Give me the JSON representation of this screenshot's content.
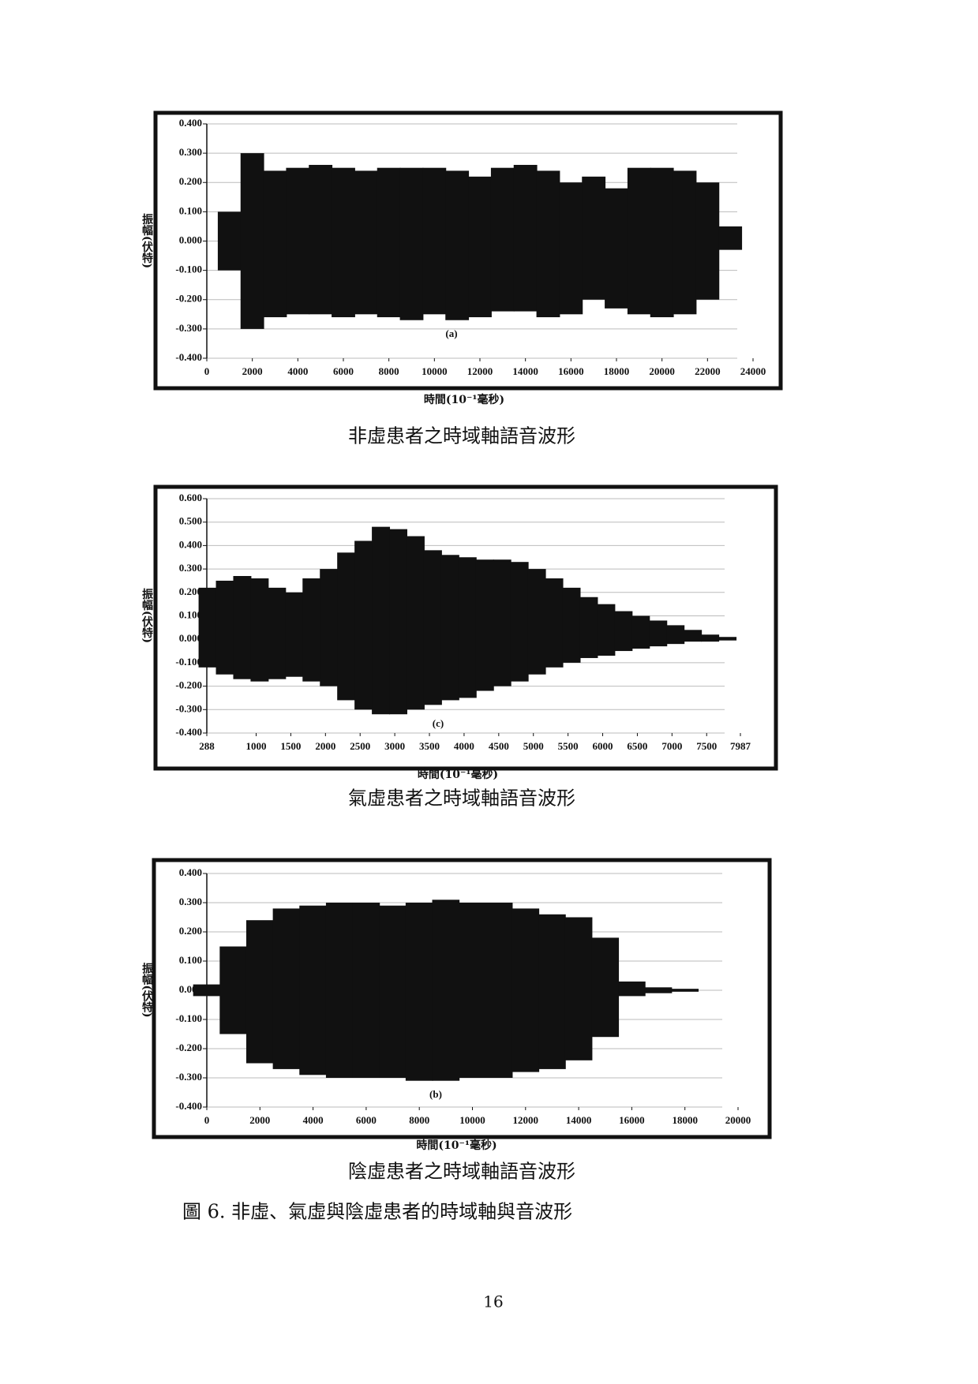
{
  "chart_data": [
    {
      "type": "waveform",
      "annotation": "(a)",
      "ylabel": "振幅(伏特)",
      "xlabel": "時間(10⁻¹毫秒)",
      "caption": "非虛患者之時域軸語音波形",
      "x": [
        0,
        1000,
        2000,
        3000,
        4000,
        5000,
        6000,
        7000,
        8000,
        9000,
        10000,
        11000,
        12000,
        13000,
        14000,
        15000,
        16000,
        17000,
        18000,
        19000,
        20000,
        21000,
        22000,
        23000,
        24000
      ],
      "series": [
        {
          "color": "#111111",
          "values": [
            null,
            0.1,
            0.3,
            0.24,
            0.25,
            0.26,
            0.25,
            0.24,
            0.25,
            0.25,
            0.25,
            0.24,
            0.22,
            0.25,
            0.26,
            0.24,
            0.2,
            0.22,
            0.18,
            0.25,
            0.25,
            0.24,
            0.2,
            0.05,
            null
          ]
        },
        {
          "color": "#111111",
          "values": [
            null,
            -0.1,
            -0.3,
            -0.26,
            -0.25,
            -0.25,
            -0.26,
            -0.25,
            -0.26,
            -0.27,
            -0.25,
            -0.27,
            -0.26,
            -0.24,
            -0.24,
            -0.26,
            -0.25,
            -0.2,
            -0.23,
            -0.25,
            -0.26,
            -0.25,
            -0.2,
            -0.03,
            null
          ]
        }
      ],
      "xlim": [
        0,
        24000
      ],
      "ylim": [
        -0.4,
        0.4
      ],
      "xticks": [
        0,
        2000,
        4000,
        6000,
        8000,
        10000,
        12000,
        14000,
        16000,
        18000,
        20000,
        22000,
        24000
      ],
      "yticks": [
        {
          "value": 0.4,
          "label": "0.400"
        },
        {
          "value": 0.3,
          "label": "0.300"
        },
        {
          "value": 0.2,
          "label": "0.200"
        },
        {
          "value": 0.1,
          "label": "0.100"
        },
        {
          "value": 0,
          "label": "0.000"
        },
        {
          "value": -0.1,
          "label": "-0.100"
        },
        {
          "value": -0.2,
          "label": "-0.200"
        },
        {
          "value": -0.3,
          "label": "-0.300"
        },
        {
          "value": -0.4,
          "label": "-0.400"
        }
      ],
      "grid": true
    },
    {
      "type": "waveform",
      "annotation": "(c)",
      "ylabel": "振幅(伏特)",
      "xlabel": "時間(10⁻¹毫秒)",
      "caption": "氣虛患者之時域軸語音波形",
      "x": [
        300,
        550,
        800,
        1050,
        1300,
        1550,
        1800,
        2050,
        2300,
        2550,
        2800,
        3050,
        3300,
        3550,
        3800,
        4050,
        4300,
        4550,
        4800,
        5050,
        5300,
        5550,
        5800,
        6050,
        6300,
        6550,
        6800,
        7050,
        7300,
        7550,
        7800
      ],
      "series": [
        {
          "color": "#111111",
          "values": [
            0.22,
            0.25,
            0.27,
            0.26,
            0.22,
            0.2,
            0.26,
            0.3,
            0.37,
            0.42,
            0.48,
            0.47,
            0.44,
            0.38,
            0.36,
            0.35,
            0.34,
            0.34,
            0.33,
            0.3,
            0.26,
            0.22,
            0.18,
            0.15,
            0.12,
            0.1,
            0.08,
            0.06,
            0.04,
            0.02,
            0.01
          ]
        },
        {
          "color": "#111111",
          "values": [
            -0.12,
            -0.15,
            -0.17,
            -0.18,
            -0.17,
            -0.16,
            -0.18,
            -0.2,
            -0.26,
            -0.3,
            -0.32,
            -0.32,
            -0.3,
            -0.28,
            -0.26,
            -0.25,
            -0.22,
            -0.2,
            -0.18,
            -0.15,
            -0.12,
            -0.1,
            -0.08,
            -0.07,
            -0.05,
            -0.04,
            -0.03,
            -0.02,
            -0.01,
            -0.01,
            -0.005
          ]
        }
      ],
      "xlim": [
        288,
        7987
      ],
      "ylim": [
        -0.4,
        0.6
      ],
      "xticks": [
        288,
        1000,
        1500,
        2000,
        2500,
        3000,
        3500,
        4000,
        4500,
        5000,
        5500,
        6000,
        6500,
        7000,
        7500,
        7987
      ],
      "yticks": [
        {
          "value": 0.6,
          "label": "0.600"
        },
        {
          "value": 0.5,
          "label": "0.500"
        },
        {
          "value": 0.4,
          "label": "0.400"
        },
        {
          "value": 0.3,
          "label": "0.300"
        },
        {
          "value": 0.2,
          "label": "0.200"
        },
        {
          "value": 0.1,
          "label": "0.100"
        },
        {
          "value": 0,
          "label": "0.000"
        },
        {
          "value": -0.1,
          "label": "-0.100"
        },
        {
          "value": -0.2,
          "label": "-0.200"
        },
        {
          "value": -0.3,
          "label": "-0.300"
        },
        {
          "value": -0.4,
          "label": "-0.400"
        }
      ],
      "grid": true
    },
    {
      "type": "waveform",
      "annotation": "(b)",
      "ylabel": "振幅(伏特)",
      "xlabel": "時間(10⁻¹毫秒)",
      "caption": "陰虛患者之時域軸語音波形",
      "x": [
        0,
        1000,
        2000,
        3000,
        4000,
        5000,
        6000,
        7000,
        8000,
        9000,
        10000,
        11000,
        12000,
        13000,
        14000,
        15000,
        16000,
        17000,
        18000
      ],
      "series": [
        {
          "color": "#111111",
          "values": [
            0.02,
            0.15,
            0.24,
            0.28,
            0.29,
            0.3,
            0.3,
            0.29,
            0.3,
            0.31,
            0.3,
            0.3,
            0.28,
            0.26,
            0.25,
            0.18,
            0.03,
            0.01,
            0.005
          ]
        },
        {
          "color": "#111111",
          "values": [
            -0.02,
            -0.15,
            -0.25,
            -0.27,
            -0.29,
            -0.3,
            -0.3,
            -0.3,
            -0.31,
            -0.31,
            -0.3,
            -0.3,
            -0.28,
            -0.27,
            -0.24,
            -0.16,
            -0.02,
            -0.01,
            -0.005
          ]
        }
      ],
      "xlim": [
        0,
        20000
      ],
      "ylim": [
        -0.4,
        0.4
      ],
      "xticks": [
        0,
        2000,
        4000,
        6000,
        8000,
        10000,
        12000,
        14000,
        16000,
        18000,
        20000
      ],
      "yticks": [
        {
          "value": 0.4,
          "label": "0.400"
        },
        {
          "value": 0.3,
          "label": "0.300"
        },
        {
          "value": 0.2,
          "label": "0.200"
        },
        {
          "value": 0.1,
          "label": "0.100"
        },
        {
          "value": 0,
          "label": "0.000"
        },
        {
          "value": -0.1,
          "label": "-0.100"
        },
        {
          "value": -0.2,
          "label": "-0.200"
        },
        {
          "value": -0.3,
          "label": "-0.300"
        },
        {
          "value": -0.4,
          "label": "-0.400"
        }
      ],
      "grid": true
    }
  ],
  "figure_caption": "圖 6. 非虛、氣虛與陰虛患者的時域軸與音波形",
  "page_number": "16"
}
